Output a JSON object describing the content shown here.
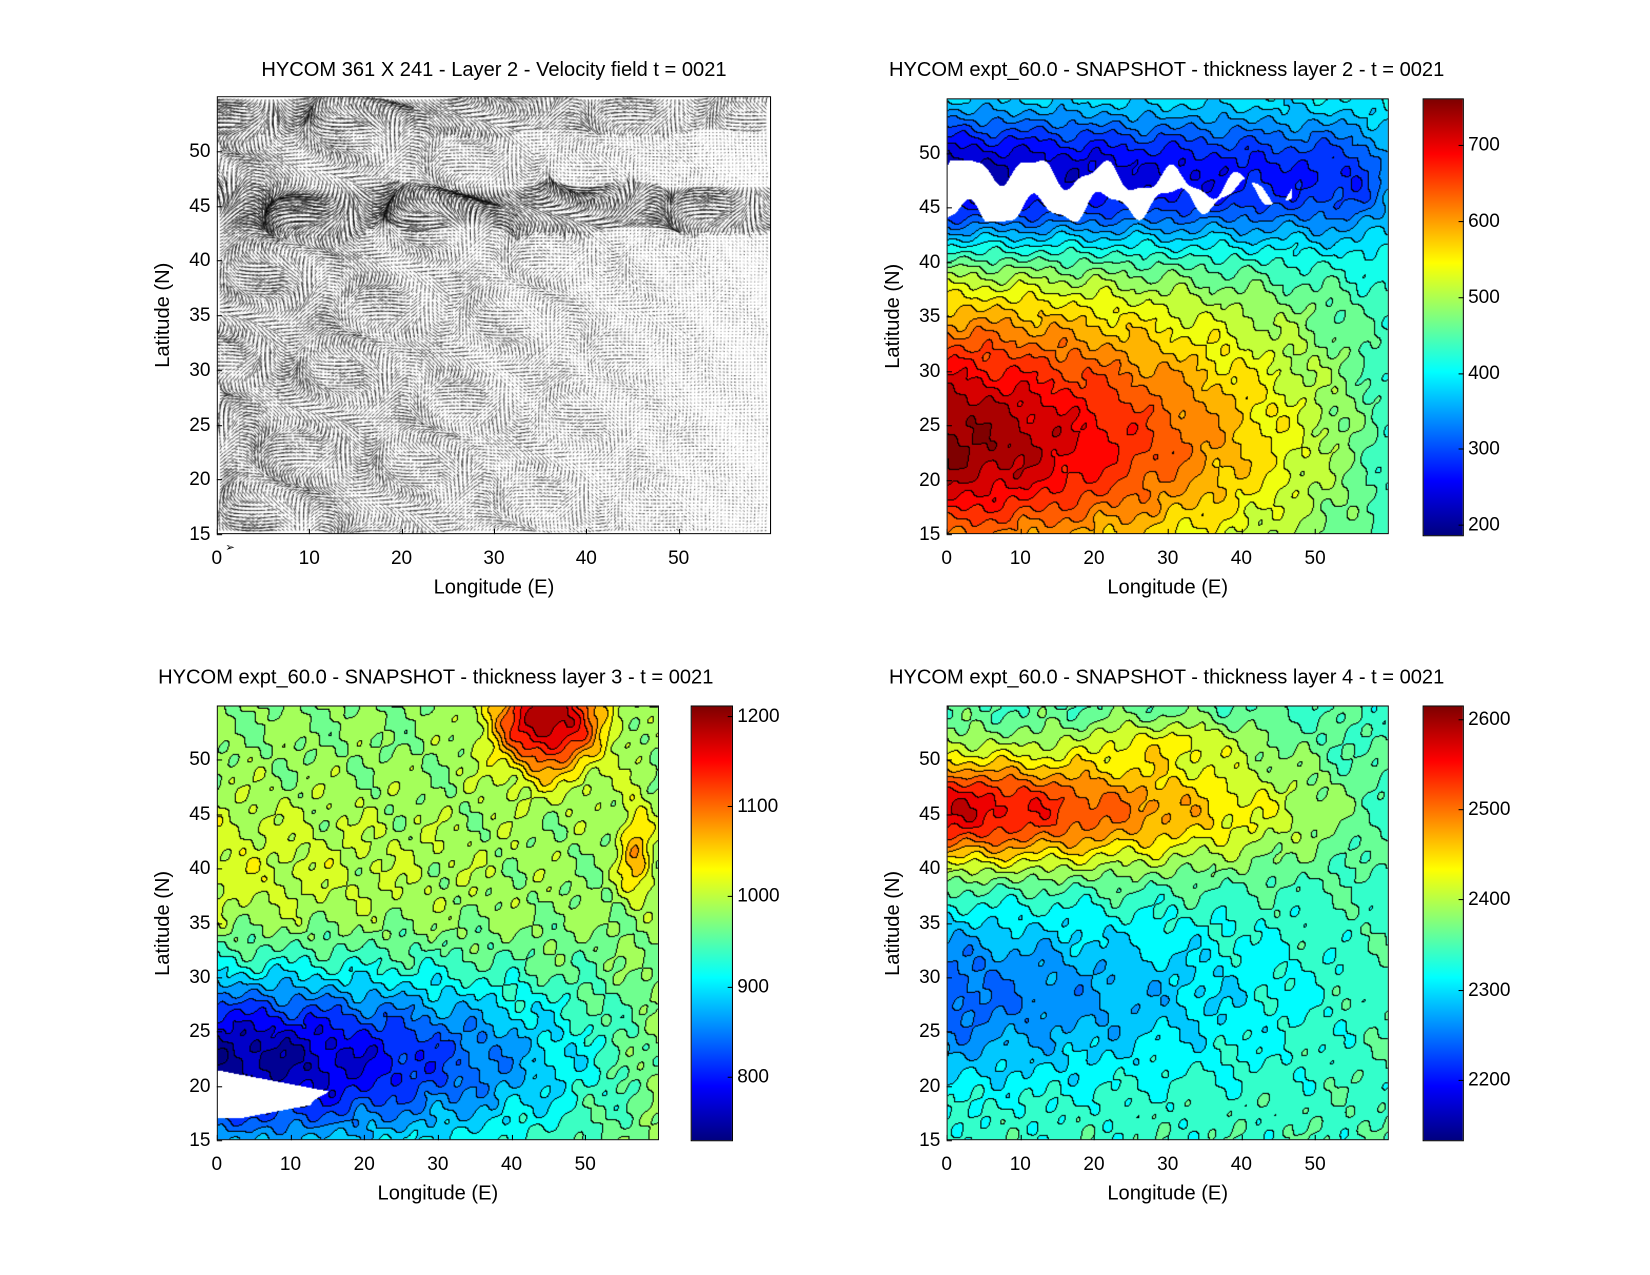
{
  "chart_data": [
    {
      "type": "quiver",
      "title": "HYCOM 361 X 241 - Layer 2 - Velocity field  t = 0021",
      "xlabel": "Longitude (E)",
      "ylabel": "Latitude (N)",
      "xlim": [
        0,
        60
      ],
      "ylim": [
        15,
        55
      ],
      "xticks": [
        "0",
        "10",
        "20",
        "30",
        "40",
        "50"
      ],
      "xtick_values": [
        0,
        10,
        20,
        30,
        40,
        50
      ],
      "yticks": [
        "15",
        "20",
        "25",
        "30",
        "35",
        "40",
        "45",
        "50"
      ],
      "ytick_values": [
        15,
        20,
        25,
        30,
        35,
        40,
        45,
        50
      ],
      "grid": false
    },
    {
      "type": "heatmap",
      "title": "HYCOM expt_60.0 - SNAPSHOT - thickness layer 2 - t = 0021",
      "xlabel": "Longitude (E)",
      "ylabel": "Latitude (N)",
      "xlim": [
        0,
        60
      ],
      "ylim": [
        15,
        55
      ],
      "xticks": [
        "0",
        "10",
        "20",
        "30",
        "40",
        "50"
      ],
      "xtick_values": [
        0,
        10,
        20,
        30,
        40,
        50
      ],
      "yticks": [
        "15",
        "20",
        "25",
        "30",
        "35",
        "40",
        "45",
        "50"
      ],
      "ytick_values": [
        15,
        20,
        25,
        30,
        35,
        40,
        45,
        50
      ],
      "colorbar": {
        "ticks": [
          "200",
          "300",
          "400",
          "500",
          "600",
          "700"
        ],
        "tick_values": [
          200,
          300,
          400,
          500,
          600,
          700
        ],
        "clim": [
          185,
          762
        ],
        "colormap": "jet"
      },
      "contour_interval": 25,
      "features": {
        "max_region": "southwest (lat 20-25)",
        "min_region": "north (lat 43-52)",
        "missing_region": "lat 45-49, lon 0-47"
      }
    },
    {
      "type": "heatmap",
      "title": "HYCOM expt_60.0 - SNAPSHOT - thickness layer 3 - t = 0021",
      "xlabel": "Longitude (E)",
      "ylabel": "Latitude (N)",
      "xlim": [
        0,
        60
      ],
      "ylim": [
        15,
        55
      ],
      "xticks": [
        "0",
        "10",
        "20",
        "30",
        "40",
        "50"
      ],
      "xtick_values": [
        0,
        10,
        20,
        30,
        40,
        50
      ],
      "yticks": [
        "15",
        "20",
        "25",
        "30",
        "35",
        "40",
        "45",
        "50"
      ],
      "ytick_values": [
        15,
        20,
        25,
        30,
        35,
        40,
        45,
        50
      ],
      "colorbar": {
        "ticks": [
          "800",
          "900",
          "1000",
          "1100",
          "1200"
        ],
        "tick_values": [
          800,
          900,
          1000,
          1100,
          1200
        ],
        "clim": [
          728,
          1212
        ],
        "colormap": "jet"
      },
      "contour_interval": 25,
      "features": {
        "max_region": "northeast (lat 50-55, lon 40-55)",
        "min_region": "southwest (lat 18-25)",
        "missing_region": "lat 17-21, lon 0-14"
      }
    },
    {
      "type": "heatmap",
      "title": "HYCOM expt_60.0 - SNAPSHOT - thickness layer 4 - t = 0021",
      "xlabel": "Longitude (E)",
      "ylabel": "Latitude (N)",
      "xlim": [
        0,
        60
      ],
      "ylim": [
        15,
        55
      ],
      "xticks": [
        "0",
        "10",
        "20",
        "30",
        "40",
        "50"
      ],
      "xtick_values": [
        0,
        10,
        20,
        30,
        40,
        50
      ],
      "yticks": [
        "15",
        "20",
        "25",
        "30",
        "35",
        "40",
        "45",
        "50"
      ],
      "ytick_values": [
        15,
        20,
        25,
        30,
        35,
        40,
        45,
        50
      ],
      "colorbar": {
        "ticks": [
          "2200",
          "2300",
          "2400",
          "2500",
          "2600"
        ],
        "tick_values": [
          2200,
          2300,
          2400,
          2500,
          2600
        ],
        "clim": [
          2132,
          2615
        ],
        "colormap": "jet"
      },
      "contour_interval": 25,
      "features": {
        "max_region": "north (lat 43-50, lon 0-40)",
        "min_region": "west (lat 22-35)"
      }
    }
  ]
}
